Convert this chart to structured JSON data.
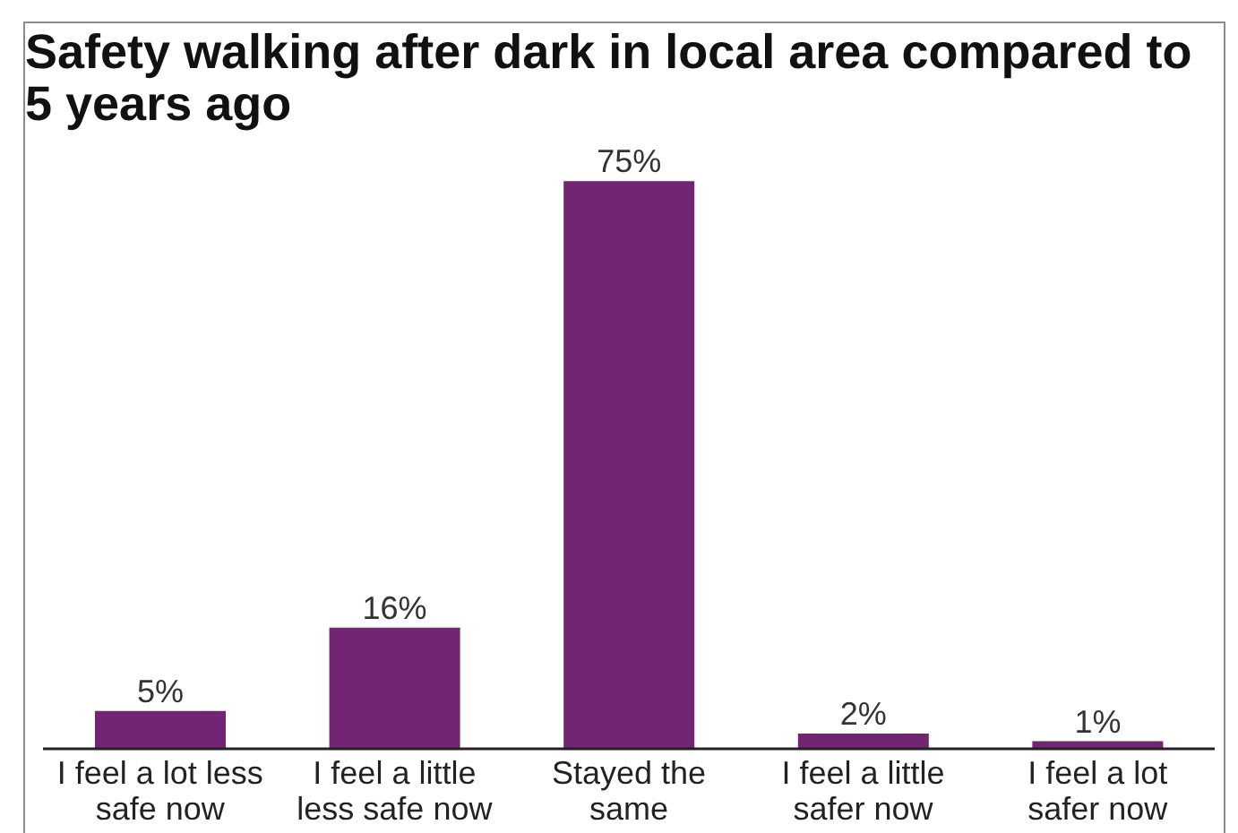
{
  "chart_data": {
    "type": "bar",
    "title": "Safety walking after dark in local area compared to 5 years ago",
    "categories": [
      "I feel a lot less\nsafe now",
      "I feel a little\nless safe now",
      "Stayed the\nsame",
      "I feel a little\nsafer now",
      "I feel a lot\nsafer now"
    ],
    "values": [
      5,
      16,
      75,
      2,
      1
    ],
    "value_labels": [
      "5%",
      "16%",
      "75%",
      "2%",
      "1%"
    ],
    "color": "#722572"
  }
}
